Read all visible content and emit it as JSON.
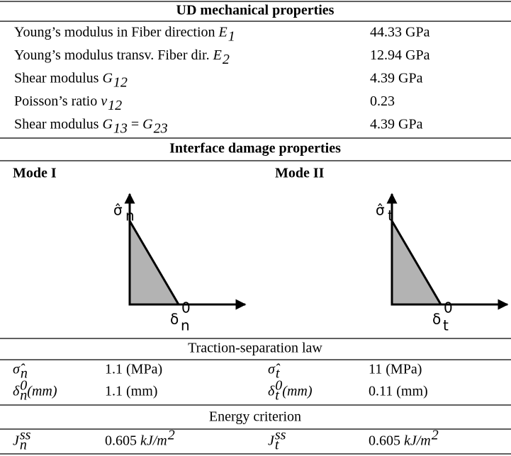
{
  "mechanical": {
    "title": "UD mechanical properties",
    "rows": [
      {
        "label": [
          {
            "text": "Young’s modulus in Fiber direction "
          },
          {
            "text": "E",
            "sub": "1",
            "italic": true
          }
        ],
        "value": [
          {
            "text": "44.33 GPa"
          }
        ]
      },
      {
        "label": [
          {
            "text": "Young’s modulus transv. Fiber dir. "
          },
          {
            "text": "E",
            "sub": "2",
            "italic": true
          }
        ],
        "value": [
          {
            "text": "12.94 GPa"
          }
        ]
      },
      {
        "label": [
          {
            "text": "Shear modulus "
          },
          {
            "text": "G",
            "sub": "12",
            "italic": true
          }
        ],
        "value": [
          {
            "text": "4.39 GPa"
          }
        ]
      },
      {
        "label": [
          {
            "text": "Poisson’s ratio "
          },
          {
            "text": "ν",
            "sub": "12",
            "italic": true
          }
        ],
        "value": [
          {
            "text": "0.23"
          }
        ]
      },
      {
        "label": [
          {
            "text": "Shear modulus "
          },
          {
            "text": "G",
            "sub": "13",
            "italic": true
          },
          {
            "text": " = "
          },
          {
            "text": "G",
            "sub": "23",
            "italic": true
          }
        ],
        "value": [
          {
            "text": "4.39 GPa"
          }
        ]
      }
    ]
  },
  "interface": {
    "title": "Interface damage properties",
    "modes": [
      {
        "name": "Mode I",
        "stress": {
          "text": "σ̂",
          "sub": "n"
        },
        "separation": {
          "text": "δ",
          "sup": "0",
          "sub": "n"
        }
      },
      {
        "name": "Mode II",
        "stress": {
          "text": "σ̂",
          "sub": "t"
        },
        "separation": {
          "text": "δ",
          "sup": "0",
          "sub": "t"
        }
      }
    ]
  },
  "traction": {
    "title": "Traction-separation law",
    "rows": [
      [
        [
          {
            "text": "σ̂",
            "sub": "n",
            "italic": true
          }
        ],
        [
          {
            "text": "1.1 (MPa)"
          }
        ],
        [
          {
            "text": "σ̂",
            "sub": "t",
            "italic": true
          }
        ],
        [
          {
            "text": "11 (MPa)"
          }
        ]
      ],
      [
        [
          {
            "text": "δ",
            "sup": "0",
            "sub": "n",
            "italic": true
          },
          {
            "text": "(mm)",
            "italic": true
          }
        ],
        [
          {
            "text": "1.1 (mm)"
          }
        ],
        [
          {
            "text": "δ",
            "sup": "0",
            "sub": "t",
            "italic": true
          },
          {
            "text": "(mm)",
            "italic": true
          }
        ],
        [
          {
            "text": "0.11 (mm)"
          }
        ]
      ]
    ]
  },
  "energy": {
    "title": "Energy criterion",
    "rows": [
      [
        [
          {
            "text": "J",
            "sup": "ss",
            "sub": "n",
            "italic": true
          }
        ],
        [
          {
            "text": "0.605 "
          },
          {
            "text": "kJ/m",
            "sup": "2",
            "italic": true
          }
        ],
        [
          {
            "text": "J",
            "sup": "ss",
            "sub": "t",
            "italic": true
          }
        ],
        [
          {
            "text": "0.605 "
          },
          {
            "text": "kJ/m",
            "sup": "2",
            "italic": true
          }
        ]
      ]
    ]
  }
}
